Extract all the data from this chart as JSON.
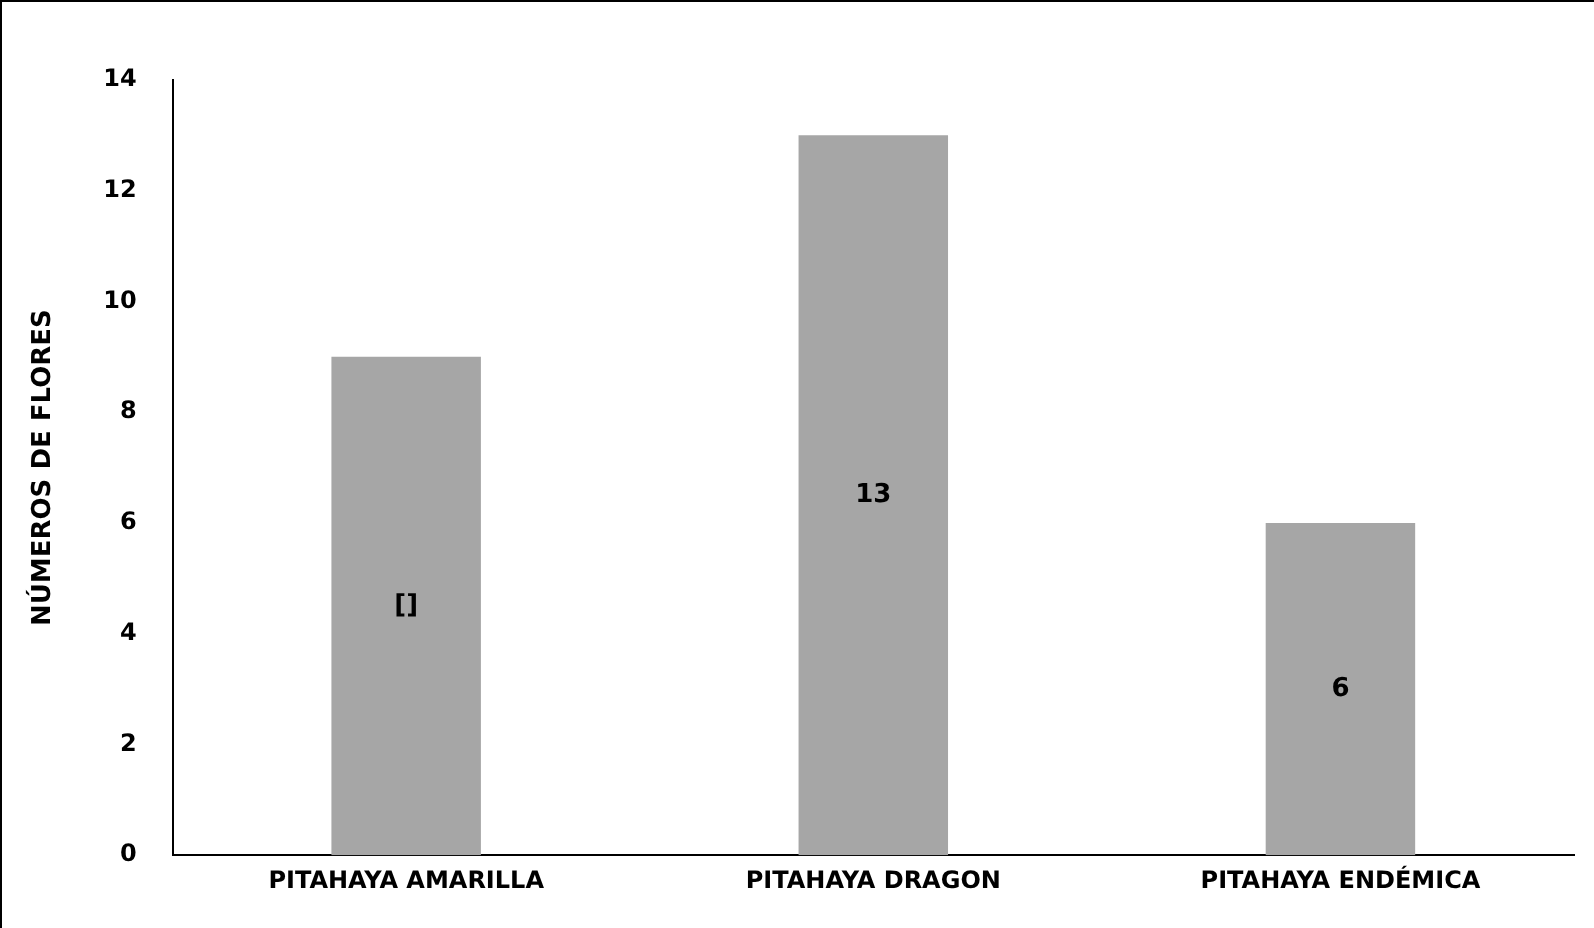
{
  "chart_data": {
    "type": "bar",
    "ylabel": "NÚMEROS DE FLORES",
    "categories": [
      "PITAHAYA AMARILLA",
      "PITAHAYA DRAGON",
      "PITAHAYA ENDÉMICA"
    ],
    "values": [
      9,
      13,
      6
    ],
    "value_labels": [
      "[]",
      "13",
      "6"
    ],
    "color": "#a6a6a6",
    "ylim": [
      0,
      14
    ],
    "yticks": [
      0,
      2,
      4,
      6,
      8,
      10,
      12,
      14
    ],
    "grid": false,
    "legend": false
  }
}
